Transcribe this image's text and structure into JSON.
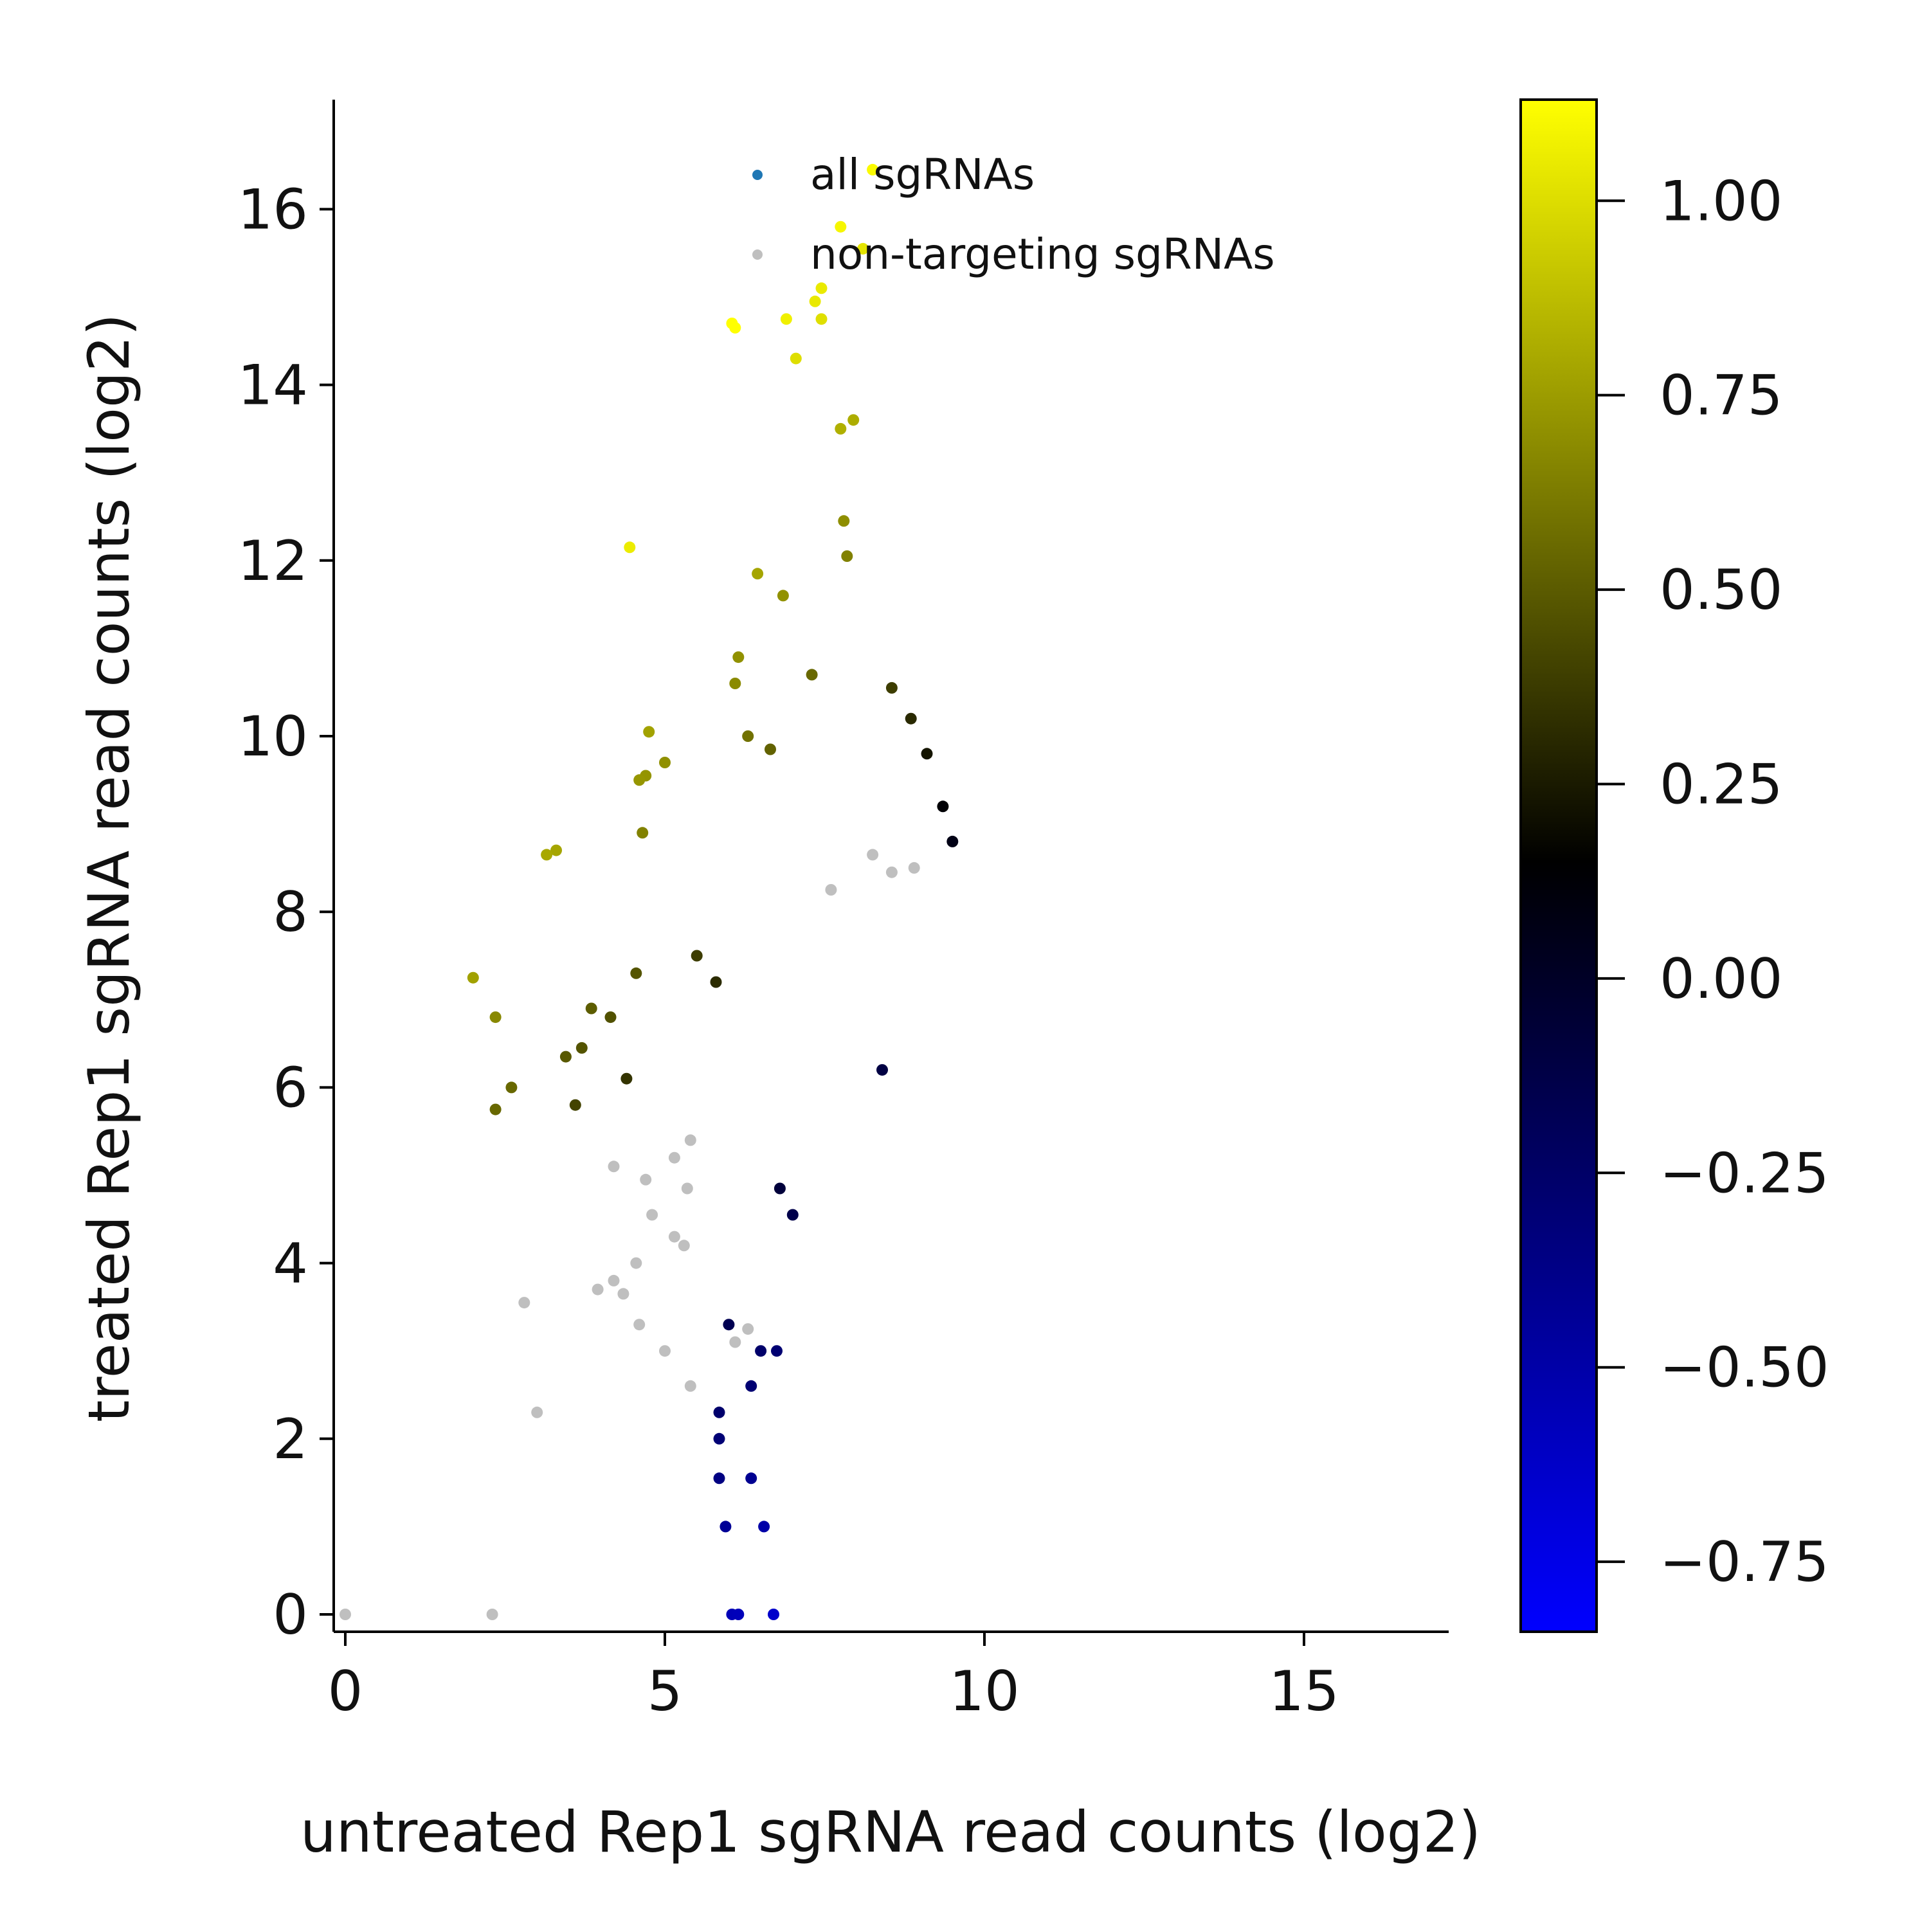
{
  "chart_data": {
    "type": "scatter",
    "xlabel": "untreated Rep1 sgRNA read counts (log2)",
    "ylabel": "treated Rep1 sgRNA read counts (log2)",
    "xlim": [
      -0.2,
      17.2
    ],
    "ylim": [
      -0.2,
      17.3
    ],
    "x_ticks": [
      0,
      5,
      10,
      15
    ],
    "y_ticks": [
      0,
      2,
      4,
      6,
      8,
      10,
      12,
      14,
      16
    ],
    "grid": false,
    "legend": {
      "position": "top-center",
      "entries": [
        "all sgRNAs",
        "non-targeting sgRNAs"
      ]
    },
    "colorbar": {
      "range": [
        -0.84,
        1.13
      ],
      "ticks": [
        -0.75,
        -0.5,
        -0.25,
        0.0,
        0.25,
        0.5,
        0.75,
        1.0
      ],
      "tick_labels": [
        "−0.75",
        "−0.50",
        "−0.25",
        "0.00",
        "0.25",
        "0.50",
        "0.75",
        "1.00"
      ],
      "colors": [
        "#0000ff",
        "#000000",
        "#ffff00"
      ]
    },
    "series": [
      {
        "name": "all sgRNAs",
        "legend_color": "#1f77b4",
        "color_by": "colorbar value",
        "points": [
          [
            8.25,
            16.45
          ],
          [
            7.75,
            15.8
          ],
          [
            8.1,
            15.55
          ],
          [
            7.45,
            15.1
          ],
          [
            7.35,
            14.95
          ],
          [
            6.05,
            14.7
          ],
          [
            6.1,
            14.65
          ],
          [
            6.9,
            14.75
          ],
          [
            7.45,
            14.75
          ],
          [
            7.05,
            14.3
          ],
          [
            7.75,
            13.5
          ],
          [
            7.95,
            13.6
          ],
          [
            7.8,
            12.45
          ],
          [
            7.85,
            12.05
          ],
          [
            4.45,
            12.15
          ],
          [
            6.45,
            11.85
          ],
          [
            6.85,
            11.6
          ],
          [
            6.15,
            10.9
          ],
          [
            6.1,
            10.6
          ],
          [
            7.3,
            10.7
          ],
          [
            8.55,
            10.55
          ],
          [
            4.75,
            10.05
          ],
          [
            6.3,
            10.0
          ],
          [
            6.65,
            9.85
          ],
          [
            5.0,
            9.7
          ],
          [
            4.7,
            9.55
          ],
          [
            4.6,
            9.5
          ],
          [
            8.85,
            10.2
          ],
          [
            9.1,
            9.8
          ],
          [
            3.3,
            8.7
          ],
          [
            3.15,
            8.65
          ],
          [
            4.65,
            8.9
          ],
          [
            2.0,
            7.25
          ],
          [
            2.35,
            6.8
          ],
          [
            2.6,
            6.0
          ],
          [
            2.35,
            5.75
          ],
          [
            3.7,
            6.45
          ],
          [
            3.85,
            6.9
          ],
          [
            4.15,
            6.8
          ],
          [
            3.6,
            5.8
          ],
          [
            3.45,
            6.35
          ],
          [
            4.4,
            6.1
          ],
          [
            4.55,
            7.3
          ],
          [
            5.5,
            7.5
          ],
          [
            5.8,
            7.2
          ],
          [
            9.5,
            8.8
          ],
          [
            9.35,
            9.2
          ],
          [
            8.4,
            6.2
          ],
          [
            6.8,
            4.85
          ],
          [
            7.0,
            4.55
          ],
          [
            5.85,
            2.3
          ],
          [
            5.85,
            2.0
          ],
          [
            5.85,
            1.55
          ],
          [
            6.35,
            1.55
          ],
          [
            5.95,
            1.0
          ],
          [
            6.55,
            1.0
          ],
          [
            6.05,
            0.0
          ],
          [
            6.15,
            0.0
          ],
          [
            6.7,
            0.0
          ],
          [
            6.35,
            2.6
          ],
          [
            6.5,
            3.0
          ],
          [
            6.0,
            3.3
          ],
          [
            6.75,
            3.0
          ]
        ]
      },
      {
        "name": "non-targeting sgRNAs",
        "color": "#bfbfbf",
        "points": [
          [
            0.0,
            0.0
          ],
          [
            2.3,
            0.0
          ],
          [
            2.8,
            3.55
          ],
          [
            3.0,
            2.3
          ],
          [
            3.95,
            3.7
          ],
          [
            4.2,
            3.8
          ],
          [
            4.35,
            3.65
          ],
          [
            4.55,
            4.0
          ],
          [
            4.6,
            3.3
          ],
          [
            4.8,
            4.55
          ],
          [
            5.0,
            3.0
          ],
          [
            5.15,
            4.3
          ],
          [
            5.3,
            4.2
          ],
          [
            5.4,
            2.6
          ],
          [
            4.2,
            5.1
          ],
          [
            4.7,
            4.95
          ],
          [
            5.15,
            5.2
          ],
          [
            5.35,
            4.85
          ],
          [
            5.4,
            5.4
          ],
          [
            6.1,
            3.1
          ],
          [
            6.3,
            3.25
          ],
          [
            8.25,
            8.65
          ],
          [
            8.55,
            8.45
          ],
          [
            8.9,
            8.5
          ],
          [
            7.6,
            8.25
          ]
        ]
      }
    ]
  }
}
